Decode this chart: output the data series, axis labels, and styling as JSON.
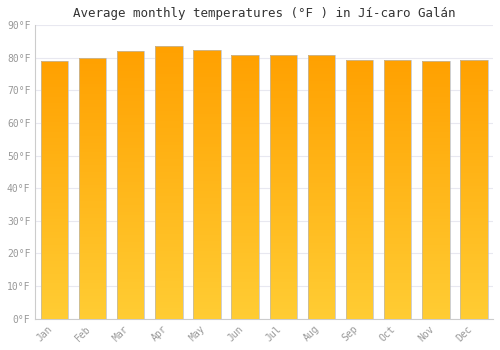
{
  "title": "Average monthly temperatures (°F ) in Jí-caro Galán",
  "months": [
    "Jan",
    "Feb",
    "Mar",
    "Apr",
    "May",
    "Jun",
    "Jul",
    "Aug",
    "Sep",
    "Oct",
    "Nov",
    "Dec"
  ],
  "values": [
    79.0,
    80.0,
    82.0,
    83.5,
    82.5,
    81.0,
    81.0,
    81.0,
    79.5,
    79.5,
    79.0,
    79.5
  ],
  "ylim": [
    0,
    90
  ],
  "yticks": [
    0,
    10,
    20,
    30,
    40,
    50,
    60,
    70,
    80,
    90
  ],
  "ytick_labels": [
    "0°F",
    "10°F",
    "20°F",
    "30°F",
    "40°F",
    "50°F",
    "60°F",
    "70°F",
    "80°F",
    "90°F"
  ],
  "background_color": "#FFFFFF",
  "grid_color": "#E8E8F0",
  "title_fontsize": 9,
  "tick_fontsize": 7,
  "bar_width": 0.72,
  "bar_color_bottom": "#FFCC33",
  "bar_color_top": "#FFA000",
  "bar_edge_color": "#BBBBBB",
  "bar_edge_width": 0.5,
  "n_gradient_segments": 80
}
